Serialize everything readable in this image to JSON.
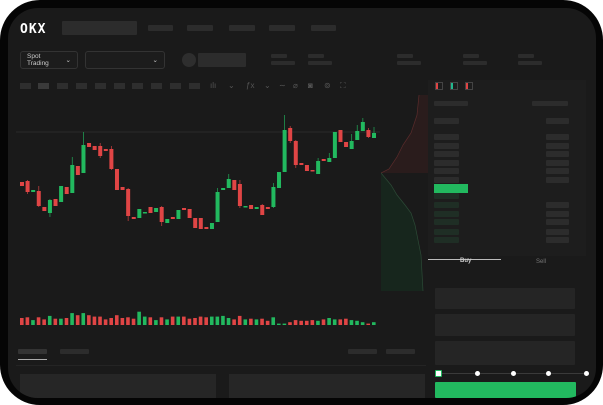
{
  "header": {
    "logo": "OKX"
  },
  "toolbar": {
    "market_select": "Spot Trading",
    "pair_select": ""
  },
  "orderbook": {
    "icons": [
      "orderbook-both-icon",
      "orderbook-bids-icon",
      "orderbook-asks-icon"
    ]
  },
  "trade": {
    "tabs": [
      "Buy",
      "Sell"
    ],
    "slider_value": 0
  },
  "colors": {
    "up": "#22b95f",
    "down": "#e04545",
    "background": "#1a1a1a"
  },
  "chart_data": {
    "type": "candlestick",
    "candles": [
      [
        118,
        118,
        114,
        114
      ],
      [
        119,
        120,
        106,
        108
      ],
      [
        108,
        110,
        108,
        110
      ],
      [
        109,
        114,
        93,
        94
      ],
      [
        93,
        93,
        89,
        89
      ],
      [
        87,
        101,
        83,
        100
      ],
      [
        101,
        101,
        94,
        94
      ],
      [
        98,
        114,
        98,
        114
      ],
      [
        113,
        113,
        106,
        106
      ],
      [
        107,
        143,
        107,
        135
      ],
      [
        134,
        134,
        125,
        125
      ],
      [
        127,
        168,
        127,
        155
      ],
      [
        157,
        157,
        153,
        153
      ],
      [
        154,
        154,
        150,
        150
      ],
      [
        154,
        157,
        142,
        144
      ],
      [
        151,
        151,
        149,
        149
      ],
      [
        151,
        154,
        130,
        131
      ],
      [
        131,
        131,
        110,
        110
      ],
      [
        113,
        113,
        110,
        110
      ],
      [
        111,
        112,
        79,
        84
      ],
      [
        83,
        83,
        81,
        81
      ],
      [
        82,
        91,
        82,
        91
      ],
      [
        87,
        88,
        87,
        88
      ],
      [
        93,
        93,
        87,
        87
      ],
      [
        88,
        92,
        88,
        92
      ],
      [
        93,
        94,
        74,
        78
      ],
      [
        77,
        81,
        77,
        81
      ],
      [
        83,
        83,
        81,
        81
      ],
      [
        81,
        90,
        81,
        90
      ],
      [
        92,
        92,
        90,
        90
      ],
      [
        91,
        91,
        82,
        82
      ],
      [
        82,
        82,
        72,
        72
      ],
      [
        82,
        82,
        71,
        71
      ],
      [
        73,
        73,
        71,
        71
      ],
      [
        71,
        77,
        71,
        77
      ],
      [
        78,
        112,
        78,
        108
      ],
      [
        110,
        112,
        110,
        112
      ],
      [
        112,
        126,
        112,
        121
      ],
      [
        120,
        120,
        110,
        110
      ],
      [
        116,
        120,
        92,
        94
      ],
      [
        93,
        94,
        93,
        94
      ],
      [
        95,
        95,
        91,
        91
      ],
      [
        91,
        93,
        91,
        93
      ],
      [
        95,
        96,
        85,
        85
      ],
      [
        93,
        93,
        91,
        91
      ],
      [
        93,
        117,
        92,
        113
      ],
      [
        112,
        128,
        112,
        128
      ],
      [
        128,
        185,
        128,
        170
      ],
      [
        172,
        174,
        157,
        159
      ],
      [
        159,
        160,
        132,
        135
      ],
      [
        137,
        137,
        135,
        135
      ],
      [
        135,
        135,
        129,
        129
      ],
      [
        130,
        130,
        129,
        129
      ],
      [
        126,
        142,
        126,
        139
      ],
      [
        141,
        141,
        139,
        139
      ],
      [
        138,
        147,
        138,
        142
      ],
      [
        142,
        168,
        142,
        168
      ],
      [
        170,
        170,
        158,
        158
      ],
      [
        158,
        158,
        153,
        153
      ],
      [
        151,
        166,
        151,
        159
      ],
      [
        160,
        175,
        160,
        169
      ],
      [
        169,
        182,
        169,
        178
      ],
      [
        170,
        172,
        162,
        163
      ],
      [
        162,
        173,
        162,
        167
      ]
    ],
    "volumes": [
      10,
      11,
      7,
      11,
      8,
      13,
      9,
      9,
      10,
      17,
      14,
      17,
      14,
      12,
      12,
      8,
      10,
      14,
      10,
      11,
      9,
      19,
      12,
      11,
      7,
      11,
      8,
      12,
      12,
      12,
      9,
      10,
      12,
      11,
      12,
      12,
      13,
      10,
      8,
      13,
      8,
      9,
      8,
      9,
      6,
      11,
      2,
      2,
      4,
      7,
      6,
      6,
      7,
      6,
      8,
      10,
      8,
      8,
      9,
      7,
      6,
      4,
      2,
      4
    ]
  }
}
